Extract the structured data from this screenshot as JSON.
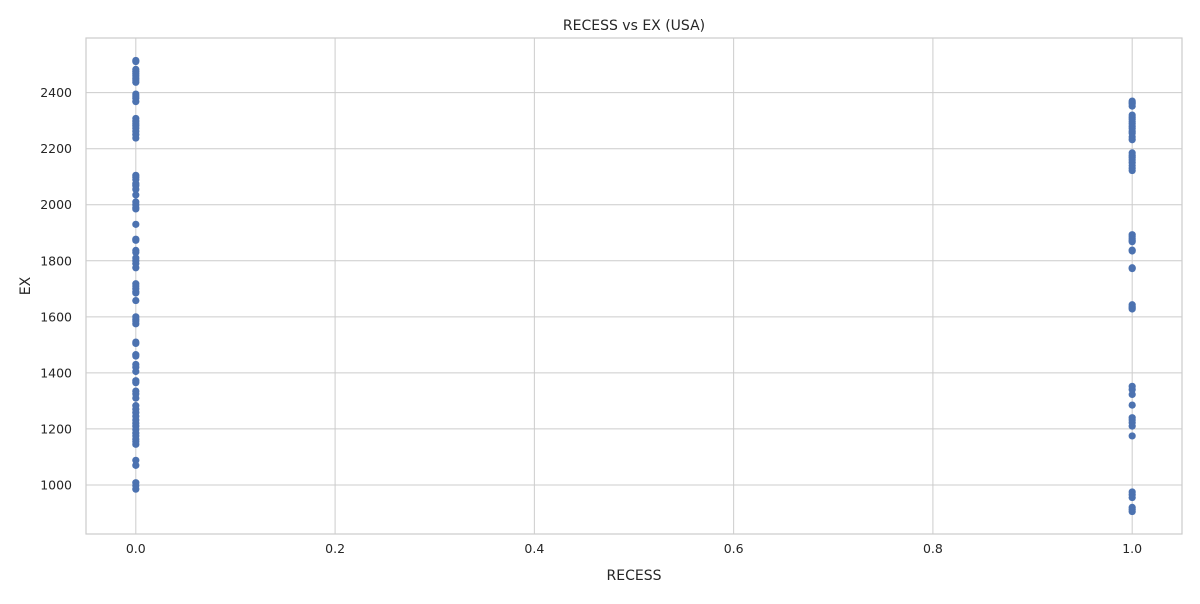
{
  "chart_data": {
    "type": "scatter",
    "title": "RECESS vs EX (USA)",
    "xlabel": "RECESS",
    "ylabel": "EX",
    "xlim": [
      -0.05,
      1.05
    ],
    "ylim": [
      825,
      2595
    ],
    "xticks": [
      0.0,
      0.2,
      0.4,
      0.6,
      0.8,
      1.0
    ],
    "xtick_labels": [
      "0.0",
      "0.2",
      "0.4",
      "0.6",
      "0.8",
      "1.0"
    ],
    "yticks": [
      1000,
      1200,
      1400,
      1600,
      1800,
      2000,
      2200,
      2400
    ],
    "ytick_labels": [
      "1000",
      "1200",
      "1400",
      "1600",
      "1800",
      "2000",
      "2200",
      "2400"
    ],
    "grid": true,
    "marker_color": "#4c72b0",
    "series": [
      {
        "points": [
          [
            0,
            2515
          ],
          [
            0,
            2511
          ],
          [
            0,
            2483
          ],
          [
            0,
            2475
          ],
          [
            0,
            2468
          ],
          [
            0,
            2460
          ],
          [
            0,
            2452
          ],
          [
            0,
            2445
          ],
          [
            0,
            2437
          ],
          [
            0,
            2395
          ],
          [
            0,
            2388
          ],
          [
            0,
            2380
          ],
          [
            0,
            2368
          ],
          [
            0,
            2308
          ],
          [
            0,
            2298
          ],
          [
            0,
            2290
          ],
          [
            0,
            2282
          ],
          [
            0,
            2273
          ],
          [
            0,
            2262
          ],
          [
            0,
            2250
          ],
          [
            0,
            2238
          ],
          [
            0,
            2105
          ],
          [
            0,
            2098
          ],
          [
            0,
            2090
          ],
          [
            0,
            2075
          ],
          [
            0,
            2068
          ],
          [
            0,
            2055
          ],
          [
            0,
            2035
          ],
          [
            0,
            2010
          ],
          [
            0,
            2000
          ],
          [
            0,
            1990
          ],
          [
            0,
            1985
          ],
          [
            0,
            1930
          ],
          [
            0,
            1877
          ],
          [
            0,
            1873
          ],
          [
            0,
            1837
          ],
          [
            0,
            1830
          ],
          [
            0,
            1810
          ],
          [
            0,
            1800
          ],
          [
            0,
            1790
          ],
          [
            0,
            1775
          ],
          [
            0,
            1718
          ],
          [
            0,
            1710
          ],
          [
            0,
            1700
          ],
          [
            0,
            1690
          ],
          [
            0,
            1685
          ],
          [
            0,
            1658
          ],
          [
            0,
            1600
          ],
          [
            0,
            1592
          ],
          [
            0,
            1585
          ],
          [
            0,
            1575
          ],
          [
            0,
            1510
          ],
          [
            0,
            1505
          ],
          [
            0,
            1465
          ],
          [
            0,
            1460
          ],
          [
            0,
            1430
          ],
          [
            0,
            1420
          ],
          [
            0,
            1405
          ],
          [
            0,
            1372
          ],
          [
            0,
            1365
          ],
          [
            0,
            1335
          ],
          [
            0,
            1325
          ],
          [
            0,
            1310
          ],
          [
            0,
            1283
          ],
          [
            0,
            1270
          ],
          [
            0,
            1258
          ],
          [
            0,
            1245
          ],
          [
            0,
            1232
          ],
          [
            0,
            1220
          ],
          [
            0,
            1210
          ],
          [
            0,
            1198
          ],
          [
            0,
            1185
          ],
          [
            0,
            1175
          ],
          [
            0,
            1163
          ],
          [
            0,
            1155
          ],
          [
            0,
            1145
          ],
          [
            0,
            1088
          ],
          [
            0,
            1070
          ],
          [
            0,
            1008
          ],
          [
            0,
            998
          ],
          [
            0,
            985
          ],
          [
            1,
            2370
          ],
          [
            1,
            2365
          ],
          [
            1,
            2360
          ],
          [
            1,
            2352
          ],
          [
            1,
            2320
          ],
          [
            1,
            2312
          ],
          [
            1,
            2305
          ],
          [
            1,
            2297
          ],
          [
            1,
            2289
          ],
          [
            1,
            2280
          ],
          [
            1,
            2272
          ],
          [
            1,
            2262
          ],
          [
            1,
            2255
          ],
          [
            1,
            2242
          ],
          [
            1,
            2232
          ],
          [
            1,
            2185
          ],
          [
            1,
            2175
          ],
          [
            1,
            2168
          ],
          [
            1,
            2160
          ],
          [
            1,
            2150
          ],
          [
            1,
            2140
          ],
          [
            1,
            2130
          ],
          [
            1,
            2122
          ],
          [
            1,
            1893
          ],
          [
            1,
            1887
          ],
          [
            1,
            1880
          ],
          [
            1,
            1873
          ],
          [
            1,
            1868
          ],
          [
            1,
            1838
          ],
          [
            1,
            1835
          ],
          [
            1,
            1775
          ],
          [
            1,
            1772
          ],
          [
            1,
            1643
          ],
          [
            1,
            1637
          ],
          [
            1,
            1632
          ],
          [
            1,
            1628
          ],
          [
            1,
            1352
          ],
          [
            1,
            1340
          ],
          [
            1,
            1323
          ],
          [
            1,
            1285
          ],
          [
            1,
            1240
          ],
          [
            1,
            1232
          ],
          [
            1,
            1222
          ],
          [
            1,
            1210
          ],
          [
            1,
            1175
          ],
          [
            1,
            975
          ],
          [
            1,
            965
          ],
          [
            1,
            955
          ],
          [
            1,
            920
          ],
          [
            1,
            912
          ],
          [
            1,
            905
          ]
        ]
      }
    ]
  }
}
